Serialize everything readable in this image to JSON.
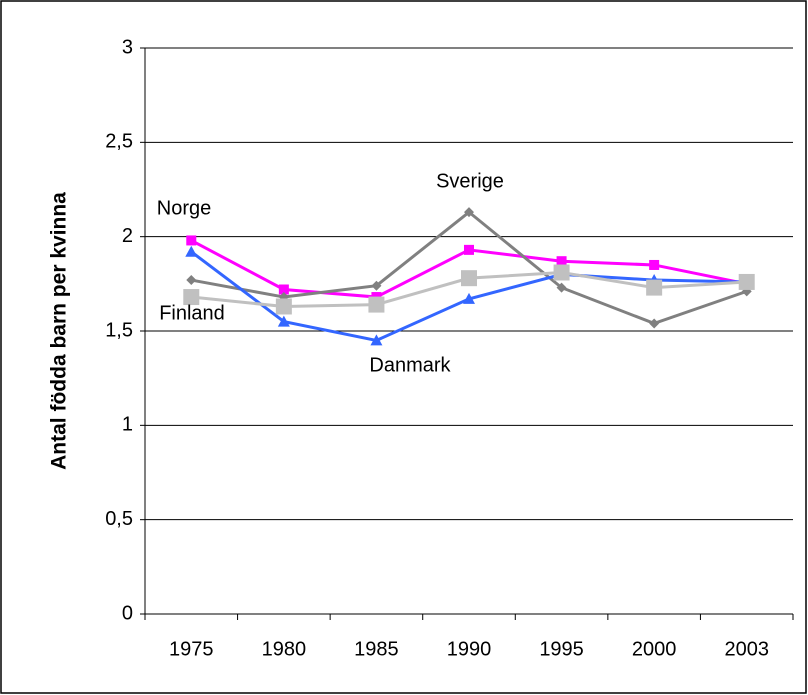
{
  "chart_data": {
    "type": "line",
    "y_label": "Antal födda barn per kvinna",
    "categories": [
      "1975",
      "1980",
      "1985",
      "1990",
      "1995",
      "2000",
      "2003"
    ],
    "series": [
      {
        "name": "Norge",
        "color": "#ff00ff",
        "marker": "square",
        "values": [
          1.98,
          1.72,
          1.68,
          1.93,
          1.87,
          1.85,
          1.75
        ]
      },
      {
        "name": "Sverige",
        "color": "#808080",
        "marker": "diamond",
        "values": [
          1.77,
          1.68,
          1.74,
          2.13,
          1.73,
          1.54,
          1.71
        ]
      },
      {
        "name": "Danmark",
        "color": "#3366ff",
        "marker": "triangle",
        "values": [
          1.92,
          1.55,
          1.45,
          1.67,
          1.8,
          1.77,
          1.76
        ]
      },
      {
        "name": "Finland",
        "color": "#c0c0c0",
        "marker": "bigsquare",
        "values": [
          1.68,
          1.63,
          1.64,
          1.78,
          1.81,
          1.73,
          1.76
        ]
      }
    ],
    "ylim": [
      0,
      3
    ],
    "yticks": [
      0,
      {
        "value": 0.5,
        "label": "0,5"
      },
      1,
      {
        "value": 1.5,
        "label": "1,5"
      },
      2,
      {
        "value": 2.5,
        "label": "2,5"
      },
      3
    ],
    "grid": true
  }
}
